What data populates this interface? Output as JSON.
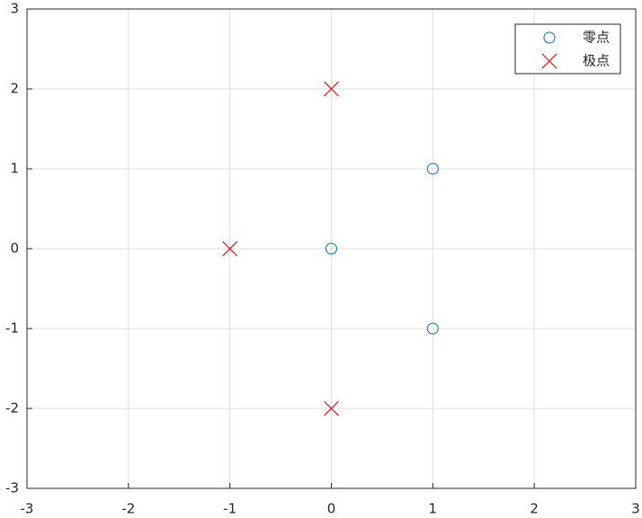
{
  "chart_data": {
    "type": "scatter",
    "series": [
      {
        "name": "零点",
        "color": "#0072bd",
        "marker": "circle",
        "x": [
          0,
          1,
          1
        ],
        "values": [
          0,
          1,
          -1
        ]
      },
      {
        "name": "极点",
        "color": "#ff0000",
        "marker": "x",
        "x": [
          -1,
          0,
          0
        ],
        "values": [
          0,
          2,
          -2
        ]
      }
    ],
    "xlim": [
      -3,
      3
    ],
    "ylim": [
      -3,
      3
    ],
    "xticks": [
      -3,
      -2,
      -1,
      0,
      1,
      2,
      3
    ],
    "yticks": [
      -3,
      -2,
      -1,
      0,
      1,
      2,
      3
    ],
    "grid": true,
    "legend": "upper right"
  }
}
